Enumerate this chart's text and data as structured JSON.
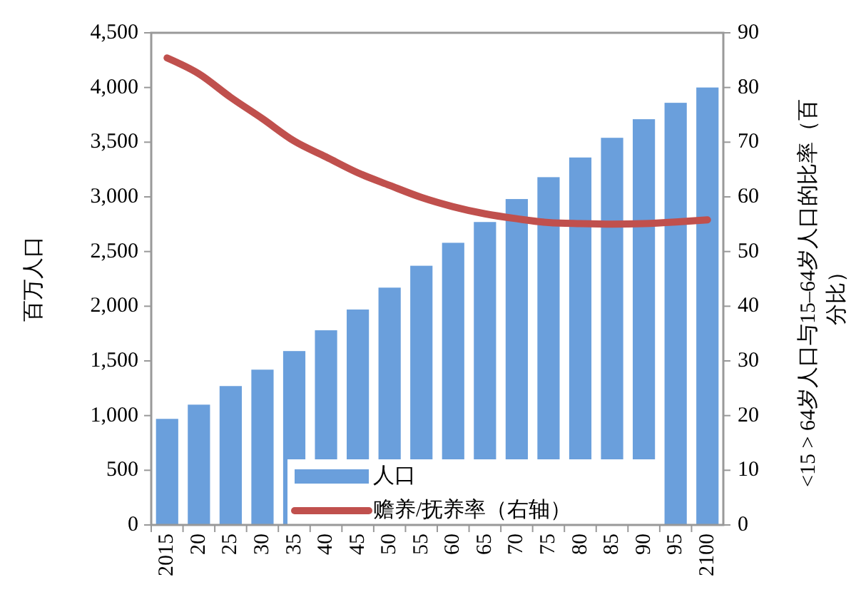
{
  "chart_data": {
    "type": "bar",
    "categories": [
      "2015",
      "20",
      "25",
      "30",
      "35",
      "40",
      "45",
      "50",
      "55",
      "60",
      "65",
      "70",
      "75",
      "80",
      "85",
      "90",
      "95",
      "2100"
    ],
    "ylabel": "百万人口",
    "y2label": "<15 > 64岁人口与15–64岁人口的比率（百分比）",
    "series": [
      {
        "name": "人口",
        "color": "#6a9fdc",
        "values": [
          970,
          1100,
          1270,
          1420,
          1590,
          1780,
          1970,
          2170,
          2370,
          2580,
          2770,
          2980,
          3180,
          3360,
          3540,
          3710,
          3860,
          4000
        ]
      },
      {
        "name": "赡养/抚养率（右轴）",
        "type": "line",
        "axis": "y2",
        "color": "#c0504d",
        "values": [
          85.4,
          82.5,
          78.2,
          74.3,
          70.2,
          67.3,
          64.4,
          62.1,
          59.9,
          58.2,
          56.9,
          56.0,
          55.3,
          55.1,
          55.0,
          55.1,
          55.4,
          55.8
        ]
      }
    ],
    "ylim": [
      0,
      4500
    ],
    "yticks": [
      {
        "value": 0,
        "label": "0"
      },
      {
        "value": 500,
        "label": "500"
      },
      {
        "value": 1000,
        "label": "1,000"
      },
      {
        "value": 1500,
        "label": "1,500"
      },
      {
        "value": 2000,
        "label": "2,000"
      },
      {
        "value": 2500,
        "label": "2,500"
      },
      {
        "value": 3000,
        "label": "3,000"
      },
      {
        "value": 3500,
        "label": "3,500"
      },
      {
        "value": 4000,
        "label": "4,000"
      },
      {
        "value": 4500,
        "label": "4,500"
      }
    ],
    "y2lim": [
      0,
      90
    ],
    "y2ticks": [
      0,
      10,
      20,
      30,
      40,
      50,
      60,
      70,
      80,
      90
    ],
    "legend": "bottom",
    "grid": false
  }
}
